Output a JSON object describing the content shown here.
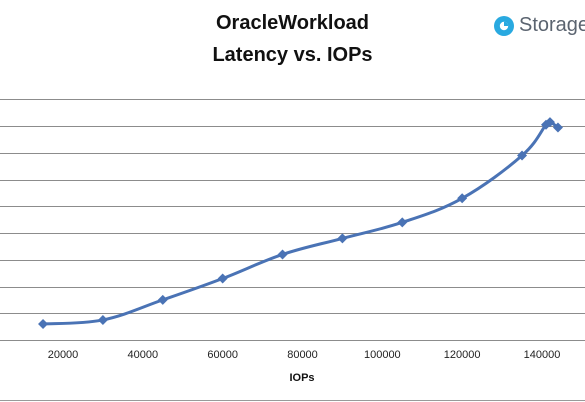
{
  "chart_data": {
    "type": "line",
    "title": "OracleWorkload",
    "subtitle": "Latency vs. IOPs",
    "xlabel": "IOPs",
    "ylabel": "",
    "xlim": [
      0,
      146000
    ],
    "ylim": [
      0,
      9.5
    ],
    "x_ticks": [
      20000,
      40000,
      60000,
      80000,
      100000,
      120000,
      140000
    ],
    "x_tick_labels": [
      "20000",
      "40000",
      "60000",
      "80000",
      "100000",
      "120000",
      "140000"
    ],
    "y_gridlines": [
      1,
      2,
      3,
      4,
      5,
      6,
      7,
      8,
      9
    ],
    "grid": true,
    "series": [
      {
        "color": "#4a73b5",
        "x": [
          15000,
          30000,
          45000,
          60000,
          75000,
          90000,
          105000,
          120000,
          135000,
          141000,
          142000,
          144000
        ],
        "values": [
          0.6,
          0.75,
          1.5,
          2.3,
          3.2,
          3.8,
          4.4,
          5.3,
          6.9,
          8.05,
          8.15,
          7.95
        ]
      }
    ]
  },
  "logo": {
    "text": "Storage",
    "icon": "storage-review-logo-icon",
    "color": "#29a9e0"
  }
}
